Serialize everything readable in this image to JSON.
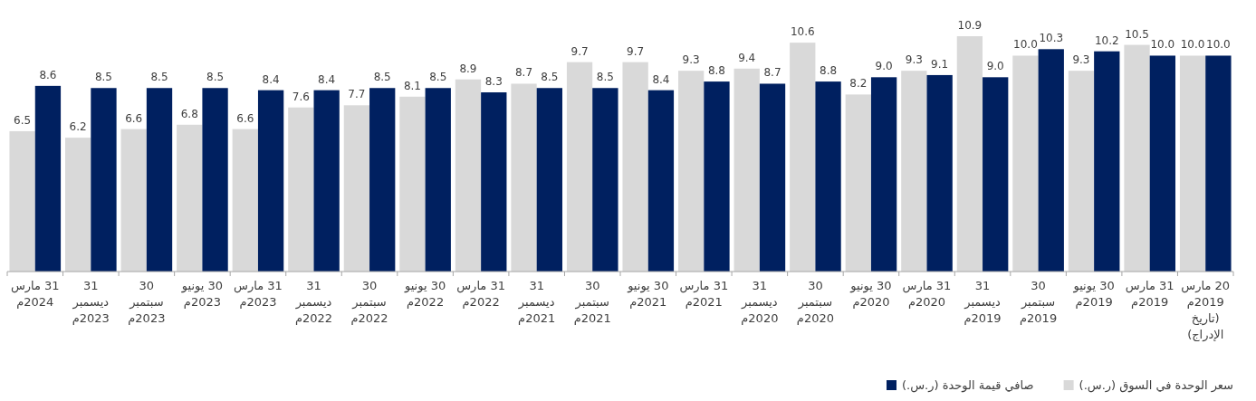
{
  "chart_data": {
    "type": "bar",
    "categories": [
      "31 مارس 2024م",
      "31 ديسمبر 2023م",
      "30 سبتمبر 2023م",
      "30 يونيو 2023م",
      "31 مارس 2023م",
      "31 ديسمبر 2022م",
      "30 سبتمبر 2022م",
      "30 يونيو 2022م",
      "31 مارس 2022م",
      "31 ديسمبر 2021م",
      "30 سبتمبر 2021م",
      "30 يونيو 2021م",
      "31 مارس 2021م",
      "31 ديسمبر 2020م",
      "30 سبتمبر 2020م",
      "30 يونيو 2020م",
      "31 مارس 2020م",
      "31 ديسمبر 2019م",
      "30 سبتمبر 2019م",
      "30 يونيو 2019م",
      "31 مارس 2019م",
      "20 مارس 2019م (تاريخ الإدراج)"
    ],
    "series": [
      {
        "name": "سعر الوحدة في السوق (ر.س.)",
        "color": "#d9d9d9",
        "values": [
          6.5,
          6.2,
          6.6,
          6.8,
          6.6,
          7.6,
          7.7,
          8.1,
          8.9,
          8.7,
          9.7,
          9.7,
          9.3,
          9.4,
          10.6,
          8.2,
          9.3,
          10.9,
          10.0,
          9.3,
          10.5,
          10.0
        ],
        "value_labels": [
          "6.5",
          "6.2",
          "6.6",
          "6.8",
          "6.6",
          "7.6",
          "7.7",
          "8.1",
          "8.9",
          "8.7",
          "9.7",
          "9.7",
          "9.3",
          "9.4",
          "10.6",
          "8.2",
          "9.3",
          "10.9",
          "10.0",
          "9.3",
          "10.5",
          "10.0"
        ]
      },
      {
        "name": "صافي قيمة الوحدة (ر.س.)",
        "color": "#002060",
        "values": [
          8.6,
          8.5,
          8.5,
          8.5,
          8.4,
          8.4,
          8.5,
          8.5,
          8.3,
          8.5,
          8.5,
          8.4,
          8.8,
          8.7,
          8.8,
          9.0,
          9.1,
          9.0,
          10.3,
          10.2,
          10.0,
          10.0
        ],
        "value_labels": [
          "8.6",
          "8.5",
          "8.5",
          "8.5",
          "8.4",
          "8.4",
          "8.5",
          "8.5",
          "8.3",
          "8.5",
          "8.5",
          "8.4",
          "8.8",
          "8.7",
          "8.8",
          "9.0",
          "9.1",
          "9.0",
          "10.3",
          "10.2",
          "10.0",
          "10.0"
        ]
      }
    ],
    "legend": "bottom right"
  }
}
